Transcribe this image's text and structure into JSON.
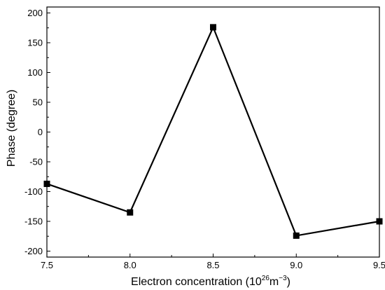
{
  "chart_data": {
    "type": "line",
    "title": "",
    "xlabel": "Electron concentration (10",
    "xlabel_exponent": "26",
    "xlabel_unit": "m",
    "xlabel_unit_exponent": "−3",
    "xlabel_close": ")",
    "ylabel": "Phase (degree)",
    "xlim": [
      7.5,
      9.5
    ],
    "ylim": [
      -210,
      210
    ],
    "x_ticks": [
      7.5,
      8.0,
      8.5,
      9.0,
      9.5
    ],
    "x_tick_labels": [
      "7.5",
      "8.0",
      "8.5",
      "9.0",
      "9.5"
    ],
    "y_ticks": [
      -200,
      -150,
      -100,
      -50,
      0,
      50,
      100,
      150,
      200
    ],
    "y_tick_labels": [
      "-200",
      "-150",
      "-100",
      "-50",
      "0",
      "50",
      "100",
      "150",
      "200"
    ],
    "grid": false,
    "legend": "none",
    "series": [
      {
        "color": "#000000",
        "marker": "square",
        "x": [
          7.5,
          8.0,
          8.5,
          9.0,
          9.5
        ],
        "y": [
          -87,
          -135,
          176,
          -174,
          -150
        ]
      }
    ]
  }
}
